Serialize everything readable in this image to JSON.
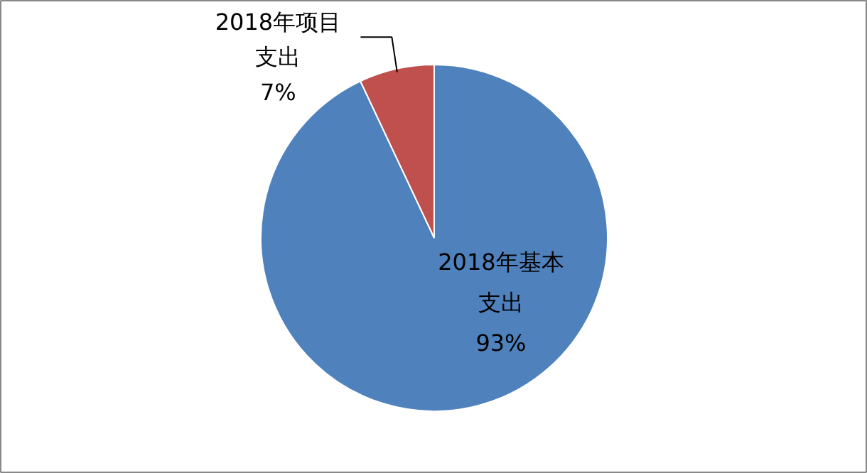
{
  "chart_data": {
    "type": "pie",
    "categories": [
      "2018年基本支出",
      "2018年项目支出"
    ],
    "values": [
      93,
      7
    ],
    "colors": [
      "#4f81bd",
      "#c0504d"
    ],
    "value_labels": [
      "93%",
      "7%"
    ]
  }
}
